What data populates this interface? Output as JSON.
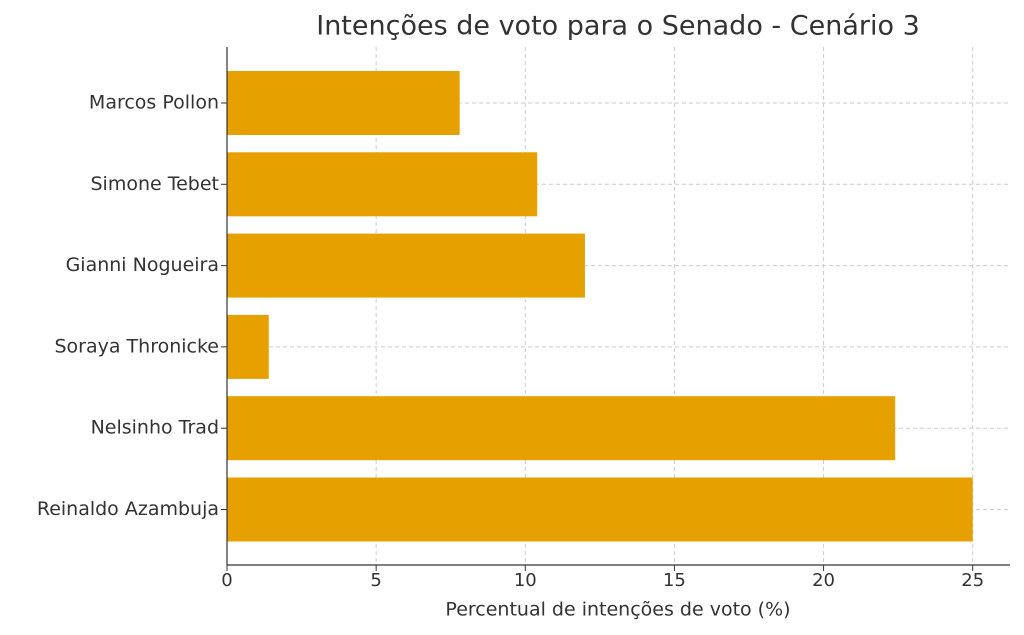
{
  "chart_data": {
    "type": "barh",
    "title": "Intenções de voto para o Senado - Cenário 3",
    "xlabel": "Percentual de intenções de voto (%)",
    "categories": [
      "Marcos Pollon",
      "Simone Tebet",
      "Gianni Nogueira",
      "Soraya Thronicke",
      "Nelsinho Trad",
      "Reinaldo Azambuja"
    ],
    "values": [
      7.8,
      10.4,
      12.0,
      1.4,
      22.4,
      25.0
    ],
    "color": "#e6a000",
    "xlim": [
      0,
      26.25
    ],
    "xticks": [
      0,
      5,
      10,
      15,
      20,
      25
    ],
    "grid": true
  }
}
